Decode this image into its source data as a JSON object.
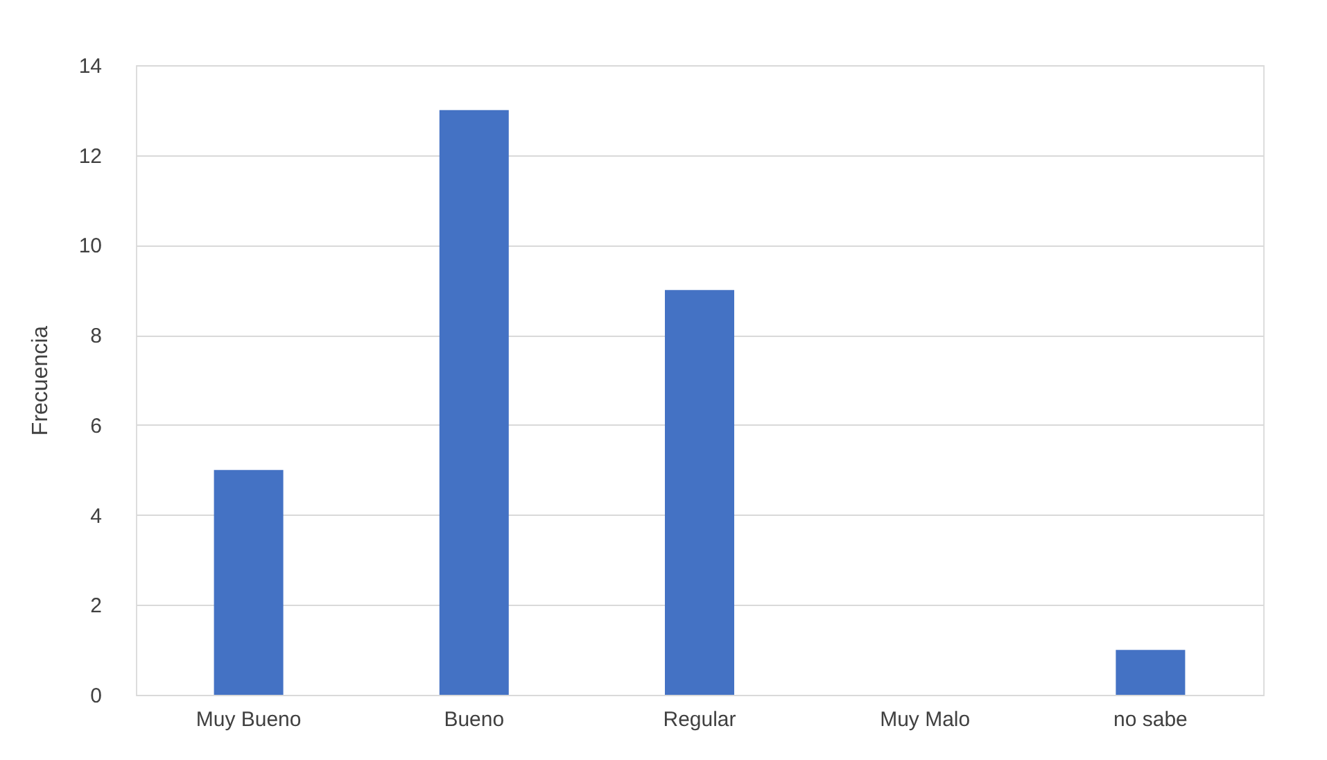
{
  "chart_data": {
    "type": "bar",
    "ylabel": "Frecuencia",
    "categories": [
      "Muy Bueno",
      "Bueno",
      "Regular",
      "Muy Malo",
      "no sabe"
    ],
    "values": [
      5,
      13,
      9,
      0,
      1
    ],
    "color": "#4472c4",
    "ylim": [
      0,
      14
    ],
    "yticks": [
      0,
      2,
      4,
      6,
      8,
      10,
      12,
      14
    ],
    "grid": "y"
  }
}
